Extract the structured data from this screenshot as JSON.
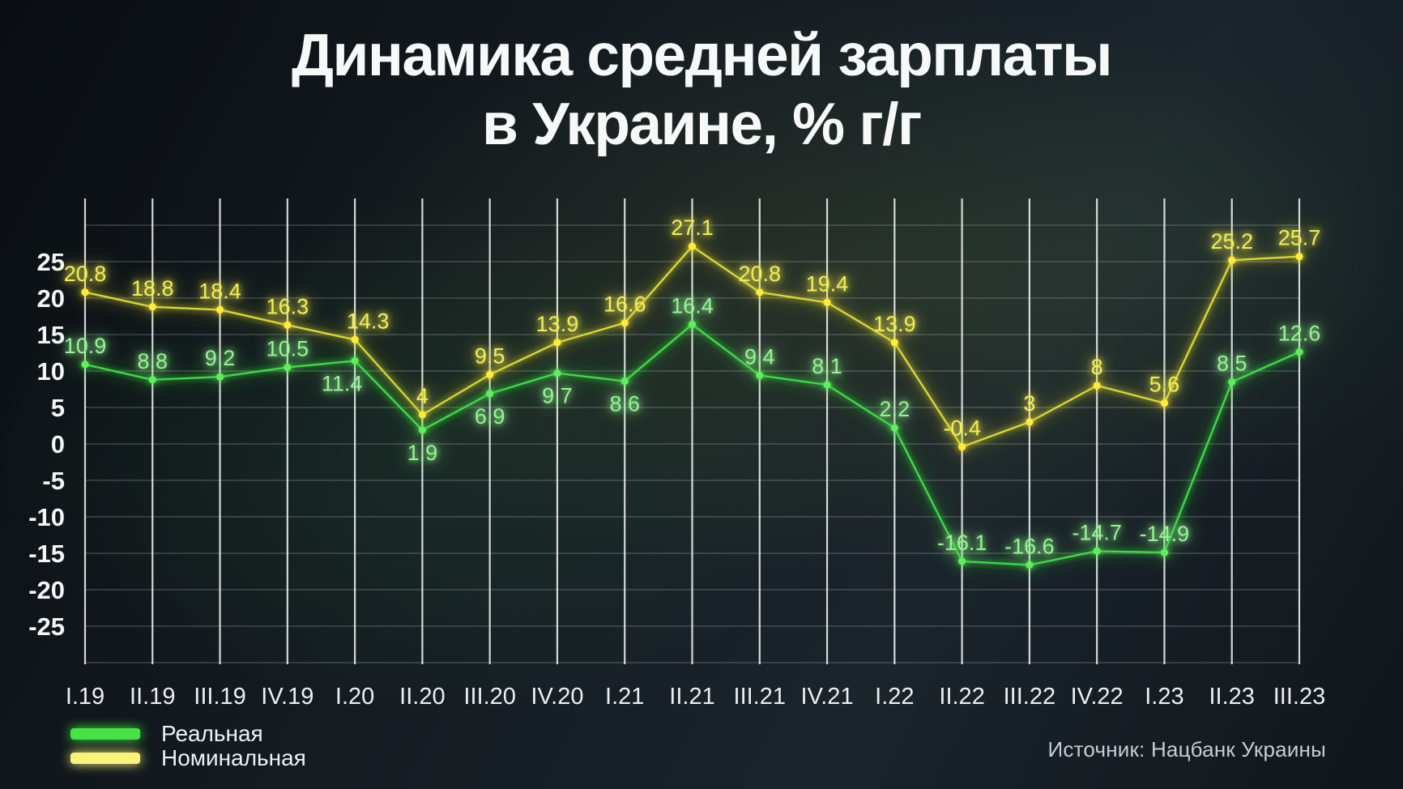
{
  "title": {
    "line1": "Динамика средней зарплаты",
    "line2": "в Украине, % г/г"
  },
  "source": "Источник: Нацбанк Украины",
  "legend": [
    {
      "label": "Реальная",
      "color": "#46e246"
    },
    {
      "label": "Номинальная",
      "color": "#f7f37b"
    }
  ],
  "chart_data": {
    "type": "line",
    "title": "Динамика средней зарплаты в Украине, % г/г",
    "categories": [
      "I.19",
      "II.19",
      "III.19",
      "IV.19",
      "I.20",
      "II.20",
      "III.20",
      "IV.20",
      "I.21",
      "II.21",
      "III.21",
      "IV.21",
      "I.22",
      "II.22",
      "III.22",
      "IV.22",
      "I.23",
      "II.23",
      "III.23"
    ],
    "series": [
      {
        "name": "Номинальная",
        "line_color": "#d8d534",
        "dot_color": "#ffec38",
        "label_color": "#f2ee52",
        "values": [
          20.8,
          18.8,
          18.4,
          16.3,
          14.3,
          4,
          9.5,
          13.9,
          16.6,
          27.1,
          20.8,
          19.4,
          13.9,
          -0.4,
          3,
          8,
          5.6,
          25.2,
          25.7
        ]
      },
      {
        "name": "Реальная",
        "line_color": "#3cd944",
        "dot_color": "#5df05b",
        "label_color": "#93f690",
        "values": [
          10.9,
          8.8,
          9.2,
          10.5,
          11.4,
          1.9,
          6.9,
          9.7,
          8.6,
          16.4,
          9.4,
          8.1,
          2.2,
          -16.1,
          -16.6,
          -14.7,
          -14.9,
          8.5,
          12.6
        ]
      }
    ],
    "yticks": [
      25,
      20,
      15,
      10,
      5,
      0,
      -5,
      -10,
      -15,
      -20,
      -25
    ],
    "ylim": [
      -30,
      33
    ],
    "grid": true,
    "legend_position": "bottom-left",
    "xlabel": "",
    "ylabel": ""
  }
}
